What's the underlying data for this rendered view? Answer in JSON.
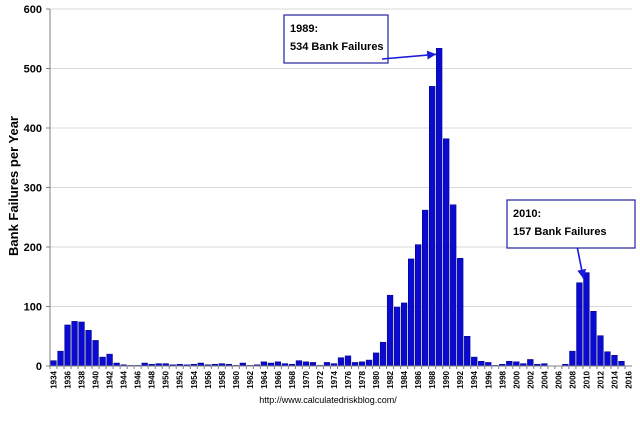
{
  "chart_data": {
    "type": "bar",
    "title": "",
    "xlabel": "",
    "ylabel": "Bank Failures per Year",
    "ylim": [
      0,
      600
    ],
    "yticks": [
      "0",
      "100",
      "200",
      "300",
      "400",
      "500",
      "600"
    ],
    "grid": "horizontal",
    "bar_color": "#0a0ad0",
    "bar_edge_color": "#000080",
    "categories": [
      1934,
      1935,
      1936,
      1937,
      1938,
      1939,
      1940,
      1941,
      1942,
      1943,
      1944,
      1945,
      1946,
      1947,
      1948,
      1949,
      1950,
      1951,
      1952,
      1953,
      1954,
      1955,
      1956,
      1957,
      1958,
      1959,
      1960,
      1961,
      1962,
      1963,
      1964,
      1965,
      1966,
      1967,
      1968,
      1969,
      1970,
      1971,
      1972,
      1973,
      1974,
      1975,
      1976,
      1977,
      1978,
      1979,
      1980,
      1981,
      1982,
      1983,
      1984,
      1985,
      1986,
      1987,
      1988,
      1989,
      1990,
      1991,
      1992,
      1993,
      1994,
      1995,
      1996,
      1997,
      1998,
      1999,
      2000,
      2001,
      2002,
      2003,
      2004,
      2005,
      2006,
      2007,
      2008,
      2009,
      2010,
      2011,
      2012,
      2013,
      2014,
      2015,
      2016
    ],
    "xticks": [
      "1934",
      "1936",
      "1938",
      "1940",
      "1942",
      "1944",
      "1946",
      "1948",
      "1950",
      "1952",
      "1954",
      "1956",
      "1958",
      "1960",
      "1962",
      "1964",
      "1966",
      "1968",
      "1970",
      "1972",
      "1974",
      "1976",
      "1978",
      "1980",
      "1982",
      "1984",
      "1986",
      "1988",
      "1990",
      "1992",
      "1994",
      "1996",
      "1998",
      "2000",
      "2002",
      "2004",
      "2006",
      "2008",
      "2010",
      "2012",
      "2014",
      "2016"
    ],
    "values": [
      9,
      25,
      69,
      75,
      74,
      60,
      43,
      15,
      20,
      5,
      2,
      1,
      1,
      5,
      3,
      4,
      4,
      2,
      3,
      2,
      3,
      5,
      2,
      3,
      4,
      3,
      1,
      5,
      1,
      2,
      7,
      5,
      7,
      4,
      3,
      9,
      7,
      6,
      1,
      6,
      4,
      14,
      17,
      6,
      7,
      10,
      22,
      40,
      119,
      99,
      106,
      180,
      204,
      262,
      470,
      534,
      382,
      271,
      181,
      50,
      15,
      8,
      6,
      1,
      3,
      8,
      7,
      4,
      11,
      3,
      4,
      0,
      0,
      3,
      25,
      140,
      157,
      92,
      51,
      24,
      18,
      8,
      0
    ],
    "annotations": [
      {
        "line1": "1989:",
        "line2": "534 Bank Failures",
        "target_year": 1989,
        "target_value": 534
      },
      {
        "line1": "2010:",
        "line2": "157 Bank Failures",
        "target_year": 2010,
        "target_value": 157
      }
    ],
    "source": "http://www.calculatedriskblog.com/"
  }
}
